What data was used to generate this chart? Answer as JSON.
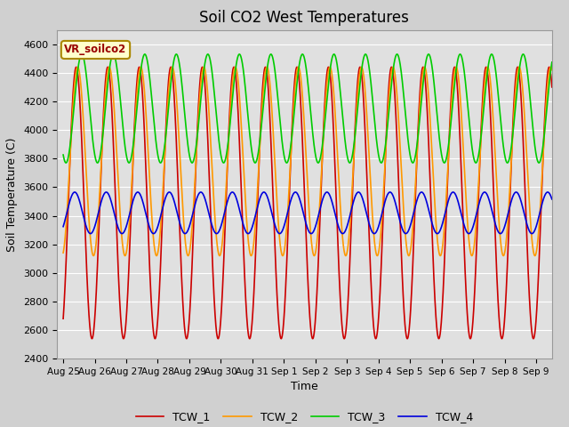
{
  "title": "Soil CO2 West Temperatures",
  "xlabel": "Time",
  "ylabel": "Soil Temperature (C)",
  "ylim": [
    2400,
    4700
  ],
  "xlim_start": -0.2,
  "xlim_end": 15.5,
  "xtick_labels": [
    "Aug 25",
    "Aug 26",
    "Aug 27",
    "Aug 28",
    "Aug 29",
    "Aug 30",
    "Aug 31",
    "Sep 1",
    "Sep 2",
    "Sep 3",
    "Sep 4",
    "Sep 5",
    "Sep 6",
    "Sep 7",
    "Sep 8",
    "Sep 9"
  ],
  "ytick_values": [
    2400,
    2600,
    2800,
    3000,
    3200,
    3400,
    3600,
    3800,
    4000,
    4200,
    4400,
    4600
  ],
  "legend_entries": [
    "TCW_1",
    "TCW_2",
    "TCW_3",
    "TCW_4"
  ],
  "line_colors": [
    "#cc0000",
    "#ff9900",
    "#00cc00",
    "#0000dd"
  ],
  "annotation_text": "VR_soilco2",
  "annotation_bg": "#ffffcc",
  "annotation_border": "#aa8800",
  "annotation_text_color": "#990000",
  "fig_bg_color": "#d0d0d0",
  "plot_bg_color": "#e0e0e0",
  "grid_color": "#ffffff",
  "title_fontsize": 12,
  "tcw1_mean": 3490,
  "tcw1_amp": 950,
  "tcw1_phase": 0.55,
  "tcw2_mean": 3780,
  "tcw2_amp": 660,
  "tcw2_phase": 0.25,
  "tcw3_mean": 4150,
  "tcw3_amp": 380,
  "tcw3_phase": -0.55,
  "tcw4_mean": 3420,
  "tcw4_amp": 145,
  "tcw4_phase": 0.85
}
